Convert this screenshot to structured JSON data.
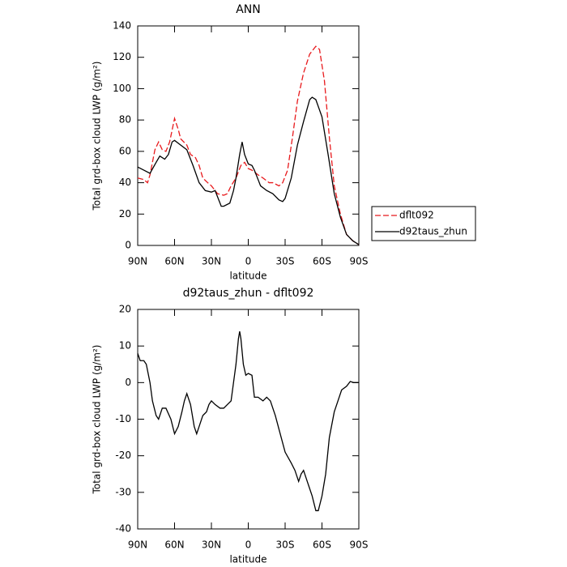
{
  "chart_data": [
    {
      "type": "line",
      "title": "ANN",
      "xlabel": "latitude",
      "ylabel": "Total grd-box cloud LWP (g/m²)",
      "xlim": [
        90,
        -90
      ],
      "xticks": [
        {
          "value": 90,
          "label": "90N"
        },
        {
          "value": 60,
          "label": "60N"
        },
        {
          "value": 30,
          "label": "30N"
        },
        0,
        {
          "value": -30,
          "label": "30S"
        },
        {
          "value": -60,
          "label": "60S"
        },
        {
          "value": -90,
          "label": "90S"
        }
      ],
      "ylim": [
        0,
        140
      ],
      "yticks": [
        0,
        20,
        40,
        60,
        80,
        100,
        120,
        140
      ],
      "legend": "right",
      "series": [
        {
          "name": "dflt092",
          "color": "#e8191c",
          "linestyle": "dashed",
          "x": [
            90,
            85,
            82,
            80,
            76,
            73,
            70,
            67,
            64,
            60,
            57,
            55,
            50,
            47,
            43,
            40,
            37,
            33,
            30,
            25,
            20,
            17,
            14,
            10,
            6,
            3,
            0,
            -3,
            -8,
            -12,
            -17,
            -20,
            -25,
            -28,
            -32,
            -36,
            -40,
            -45,
            -50,
            -55,
            -58,
            -62,
            -66,
            -70,
            -75,
            -80,
            -85,
            -90
          ],
          "values": [
            43,
            42,
            40,
            45,
            61,
            66,
            61,
            60,
            66,
            81,
            74,
            68,
            64,
            58,
            56,
            51,
            43,
            40,
            38,
            33,
            32,
            33,
            38,
            43,
            51,
            53,
            49,
            48,
            45,
            43,
            40,
            40,
            38,
            40,
            48,
            69,
            92,
            110,
            122,
            127,
            125,
            105,
            69,
            38,
            20,
            7,
            3,
            0.5
          ]
        },
        {
          "name": "d92taus_zhun",
          "color": "#000000",
          "linestyle": "solid",
          "x": [
            90,
            85,
            80,
            75,
            72,
            68,
            65,
            62,
            60,
            55,
            50,
            45,
            40,
            35,
            30,
            27,
            25,
            22,
            20,
            15,
            12,
            10,
            7,
            5,
            3,
            0,
            -3,
            -5,
            -8,
            -10,
            -15,
            -20,
            -25,
            -28,
            -30,
            -35,
            -40,
            -45,
            -50,
            -52,
            -55,
            -60,
            -65,
            -70,
            -75,
            -80,
            -85,
            -90
          ],
          "values": [
            50,
            48,
            46,
            53,
            57,
            55,
            58,
            66,
            67,
            64,
            61,
            51,
            40,
            35,
            34,
            35,
            31,
            25,
            25,
            27,
            35,
            43,
            58,
            66,
            58,
            52,
            51,
            48,
            42,
            38,
            35,
            33,
            29,
            28,
            30,
            43,
            64,
            79,
            93,
            94.5,
            93,
            82,
            58,
            33,
            18,
            7,
            3,
            0.5
          ]
        }
      ]
    },
    {
      "type": "line",
      "title": "d92taus_zhun - dflt092",
      "xlabel": "latitude",
      "ylabel": "Total grd-box cloud LWP (g/m²)",
      "xlim": [
        90,
        -90
      ],
      "xticks": [
        {
          "value": 90,
          "label": "90N"
        },
        {
          "value": 60,
          "label": "60N"
        },
        {
          "value": 30,
          "label": "30N"
        },
        0,
        {
          "value": -30,
          "label": "30S"
        },
        {
          "value": -60,
          "label": "60S"
        },
        {
          "value": -90,
          "label": "90S"
        }
      ],
      "ylim": [
        -40,
        20
      ],
      "yticks": [
        -40,
        -30,
        -20,
        -10,
        0,
        10,
        20
      ],
      "series": [
        {
          "color": "#000000",
          "linestyle": "solid",
          "x": [
            90,
            88,
            85,
            83,
            80,
            78,
            75,
            73,
            70,
            67,
            63,
            60,
            57,
            54,
            52,
            50,
            47,
            44,
            42,
            40,
            37,
            34,
            32,
            30,
            27,
            23,
            20,
            17,
            14,
            12,
            10,
            8,
            7,
            6,
            4,
            2,
            0,
            -3,
            -5,
            -8,
            -12,
            -15,
            -18,
            -22,
            -26,
            -30,
            -35,
            -38,
            -41,
            -43,
            -45,
            -48,
            -52,
            -55,
            -57,
            -60,
            -63,
            -66,
            -70,
            -73,
            -76,
            -80,
            -83,
            -86,
            -90
          ],
          "values": [
            8,
            6,
            6,
            5,
            0,
            -5,
            -9,
            -10,
            -7,
            -7,
            -10,
            -14,
            -12,
            -8,
            -5,
            -3,
            -6,
            -12,
            -14,
            -12,
            -9,
            -8,
            -6,
            -5,
            -6,
            -7,
            -7,
            -6,
            -5,
            0,
            5,
            12,
            14,
            12,
            5,
            2,
            2.5,
            2,
            -4,
            -4,
            -5,
            -4,
            -5,
            -9,
            -14,
            -19,
            -22,
            -24,
            -27,
            -25,
            -24,
            -27,
            -31,
            -35,
            -35,
            -31,
            -25,
            -15,
            -8,
            -5,
            -2,
            -1,
            0.3,
            0,
            0
          ]
        }
      ]
    }
  ]
}
